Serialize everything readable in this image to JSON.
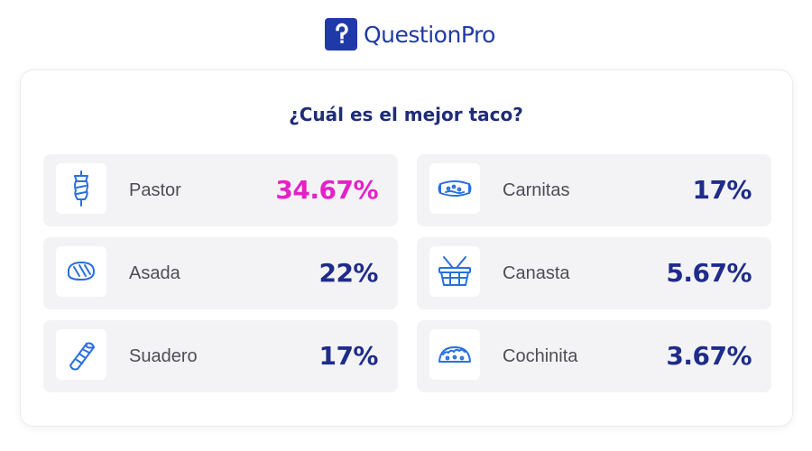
{
  "brand": {
    "name": "QuestionPro",
    "accent": "#1f3aa8"
  },
  "title": "¿Cuál es el mejor taco?",
  "colors": {
    "highlight": "#e620c8",
    "value": "#1f2c8a",
    "icon": "#2a6fe0"
  },
  "items": [
    {
      "label": "Pastor",
      "value": "34.67%",
      "icon": "trompo-icon"
    },
    {
      "label": "Carnitas",
      "value": "17%",
      "icon": "carnitas-icon"
    },
    {
      "label": "Asada",
      "value": "22%",
      "icon": "steak-icon"
    },
    {
      "label": "Canasta",
      "value": "5.67%",
      "icon": "basket-icon"
    },
    {
      "label": "Suadero",
      "value": "17%",
      "icon": "burrito-icon"
    },
    {
      "label": "Cochinita",
      "value": "3.67%",
      "icon": "taco-icon"
    }
  ]
}
